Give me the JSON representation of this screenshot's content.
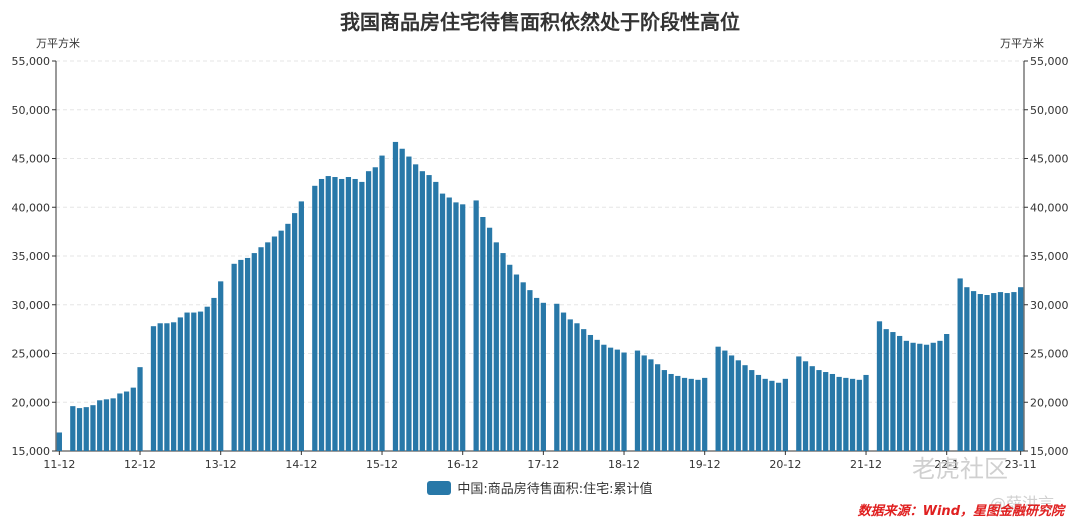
{
  "chart_data": {
    "type": "bar",
    "title": "我国商品房住宅待售面积依然处于阶段性高位",
    "unit_left": "万平方米",
    "unit_right": "万平方米",
    "ylim": [
      15000,
      55000
    ],
    "y_ticks": [
      "15,000",
      "20,000",
      "25,000",
      "30,000",
      "35,000",
      "40,000",
      "45,000",
      "50,000",
      "55,000"
    ],
    "x_tick_labels": [
      "11-12",
      "12-12",
      "13-12",
      "14-12",
      "15-12",
      "16-12",
      "17-12",
      "18-12",
      "19-12",
      "20-12",
      "21-12",
      "22-1",
      "23-11"
    ],
    "grid": true,
    "legend_position": "bottom",
    "series": [
      {
        "name": "中国:商品房待售面积:住宅:累计值",
        "color": "#2878a8",
        "values": [
          16900,
          null,
          19600,
          19400,
          19500,
          19700,
          20200,
          20300,
          20400,
          20900,
          21100,
          21500,
          23600,
          null,
          27800,
          28100,
          28100,
          28200,
          28700,
          29200,
          29200,
          29300,
          29800,
          30700,
          32400,
          null,
          34200,
          34600,
          34800,
          35300,
          35900,
          36400,
          37000,
          37600,
          38300,
          39400,
          40600,
          null,
          42200,
          42900,
          43200,
          43100,
          42900,
          43100,
          42900,
          42600,
          43700,
          44100,
          45300,
          null,
          46700,
          46000,
          45200,
          44400,
          43700,
          43300,
          42600,
          41400,
          41000,
          40500,
          40300,
          null,
          40700,
          39000,
          37900,
          36400,
          35300,
          34100,
          33100,
          32300,
          31500,
          30700,
          30200,
          null,
          30100,
          29200,
          28500,
          28100,
          27500,
          26900,
          26400,
          25900,
          25600,
          25400,
          25100,
          null,
          25300,
          24800,
          24400,
          23900,
          23300,
          22900,
          22700,
          22500,
          22400,
          22300,
          22500,
          null,
          25700,
          25300,
          24800,
          24300,
          23800,
          23300,
          22800,
          22400,
          22200,
          22000,
          22400,
          null,
          24700,
          24200,
          23700,
          23300,
          23100,
          22900,
          22600,
          22500,
          22400,
          22300,
          22800,
          null,
          28300,
          27500,
          27200,
          26800,
          26300,
          26100,
          26000,
          25900,
          26100,
          26300,
          27000,
          null,
          32700,
          31800,
          31400,
          31100,
          31000,
          31200,
          31300,
          31200,
          31300,
          31800
        ]
      }
    ]
  },
  "footer": {
    "source": "数据来源：Wind，星图金融研究院",
    "watermark_main": "老虎社区",
    "watermark_sub": "@薛洪言"
  }
}
